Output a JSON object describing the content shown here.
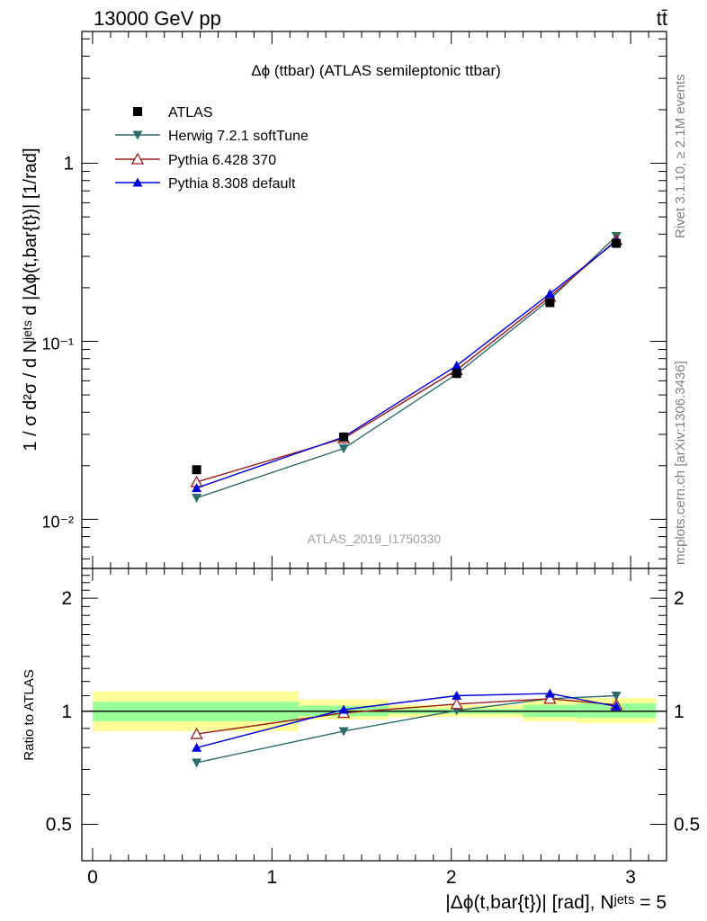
{
  "header": {
    "left": "13000 GeV pp",
    "right": "tt̄"
  },
  "side_labels": {
    "rivet": "Rivet 3.1.10, ≥ 2.1M events",
    "mcplots": "mcplots.cern.ch [arXiv:1306.3436]"
  },
  "chart_data": {
    "type": "line",
    "title": "Δϕ (ttbar) (ATLAS semileptonic ttbar)",
    "watermark": "ATLAS_2019_I1750330",
    "ylabel": "1 / σ d²σ / d Nʲᵉᵗˢ d |Δϕ(t,bar{t})| [1/rad]",
    "ratio_ylabel": "Ratio to ATLAS",
    "xlabel": "|Δϕ(t,bar{t})| [rad], Nʲᵉᵗˢ = 5",
    "xlim": [
      -0.06,
      3.2
    ],
    "ylim": [
      0.0053,
      5.5
    ],
    "yscale": "log",
    "ratio_ylim": [
      0.4,
      2.4
    ],
    "ratio_yscale": "log",
    "x_ticks": [
      0,
      1,
      2,
      3
    ],
    "x_tick_labels": [
      "0",
      "1",
      "2",
      "3"
    ],
    "y_ticks": [
      0.01,
      0.1,
      1
    ],
    "y_tick_labels": [
      "10⁻²",
      "10⁻¹",
      "1"
    ],
    "ratio_ticks": [
      0.5,
      1,
      2
    ],
    "ratio_tick_labels": [
      "0.5",
      "1",
      "2"
    ],
    "legend_position": "top-left",
    "bins": [
      {
        "lo": 0.0,
        "hi": 1.15,
        "x": 0.58,
        "green": [
          0.94,
          1.06
        ],
        "yellow": [
          0.885,
          1.13
        ]
      },
      {
        "lo": 1.15,
        "hi": 1.65,
        "x": 1.4,
        "green": [
          0.97,
          1.035
        ],
        "yellow": [
          0.95,
          1.075
        ]
      },
      {
        "lo": 1.65,
        "hi": 2.4,
        "x": 2.03,
        "green": [
          0.985,
          1.015
        ],
        "yellow": [
          0.965,
          1.04
        ]
      },
      {
        "lo": 2.4,
        "hi": 2.7,
        "x": 2.55,
        "green": [
          0.965,
          1.04
        ],
        "yellow": [
          0.94,
          1.075
        ]
      },
      {
        "lo": 2.7,
        "hi": 3.14,
        "x": 2.92,
        "green": [
          0.96,
          1.05
        ],
        "yellow": [
          0.93,
          1.085
        ]
      }
    ],
    "series": [
      {
        "name": "ATLAS",
        "marker": "square",
        "color": "#000000",
        "x": [
          0.58,
          1.4,
          2.03,
          2.55,
          2.92
        ],
        "values": [
          0.019,
          0.029,
          0.066,
          0.165,
          0.355
        ],
        "ratio": [
          1.0,
          1.0,
          1.0,
          1.0,
          1.0
        ]
      },
      {
        "name": "Herwig 7.2.1 softTune",
        "marker": "triangle-down",
        "color": "#2e6b6b",
        "x": [
          0.58,
          1.4,
          2.03,
          2.55,
          2.92
        ],
        "values": [
          0.0132,
          0.025,
          0.0655,
          0.172,
          0.39
        ],
        "ratio": [
          0.73,
          0.885,
          1.005,
          1.08,
          1.1
        ]
      },
      {
        "name": "Pythia 6.428 370",
        "marker": "triangle-open",
        "color": "#9b1b1b",
        "x": [
          0.58,
          1.4,
          2.03,
          2.55,
          2.92
        ],
        "values": [
          0.0162,
          0.0285,
          0.069,
          0.178,
          0.37
        ],
        "ratio": [
          0.87,
          0.99,
          1.045,
          1.08,
          1.04
        ]
      },
      {
        "name": "Pythia 8.308 default",
        "marker": "triangle-up",
        "color": "#0000dd",
        "x": [
          0.58,
          1.4,
          2.03,
          2.55,
          2.92
        ],
        "values": [
          0.015,
          0.029,
          0.073,
          0.185,
          0.365
        ],
        "ratio": [
          0.8,
          1.01,
          1.1,
          1.115,
          1.03
        ]
      }
    ]
  }
}
